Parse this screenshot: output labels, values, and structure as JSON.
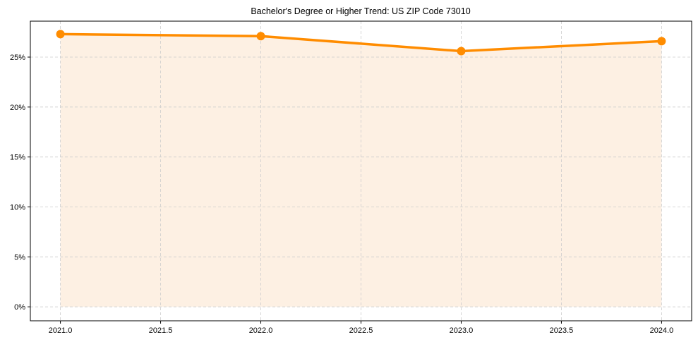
{
  "chart_data": {
    "type": "line",
    "title": "Bachelor's Degree or Higher Trend: US ZIP Code 73010",
    "xlabel": "",
    "ylabel": "",
    "x": [
      2021,
      2022,
      2023,
      2024
    ],
    "series": [
      {
        "name": "Bachelor's Degree or Higher",
        "values": [
          27.3,
          27.1,
          25.6,
          26.6
        ],
        "unit": "%"
      }
    ],
    "xlim": [
      2020.85,
      2024.15
    ],
    "ylim": [
      -1.4,
      28.6
    ],
    "x_ticks": [
      2021.0,
      2021.5,
      2022.0,
      2022.5,
      2023.0,
      2023.5,
      2024.0
    ],
    "x_tick_labels": [
      "2021.0",
      "2021.5",
      "2022.0",
      "2022.5",
      "2023.0",
      "2023.5",
      "2024.0"
    ],
    "y_ticks": [
      0,
      5,
      10,
      15,
      20,
      25
    ],
    "y_tick_labels": [
      "0%",
      "5%",
      "10%",
      "15%",
      "20%",
      "25%"
    ],
    "grid": true,
    "grid_style": "dashed",
    "fill_under_line": true,
    "legend": null,
    "colors": {
      "line": "#ff8c00",
      "fill": "#fdf0e3",
      "grid": "#cccccc",
      "axis": "#000000"
    }
  }
}
